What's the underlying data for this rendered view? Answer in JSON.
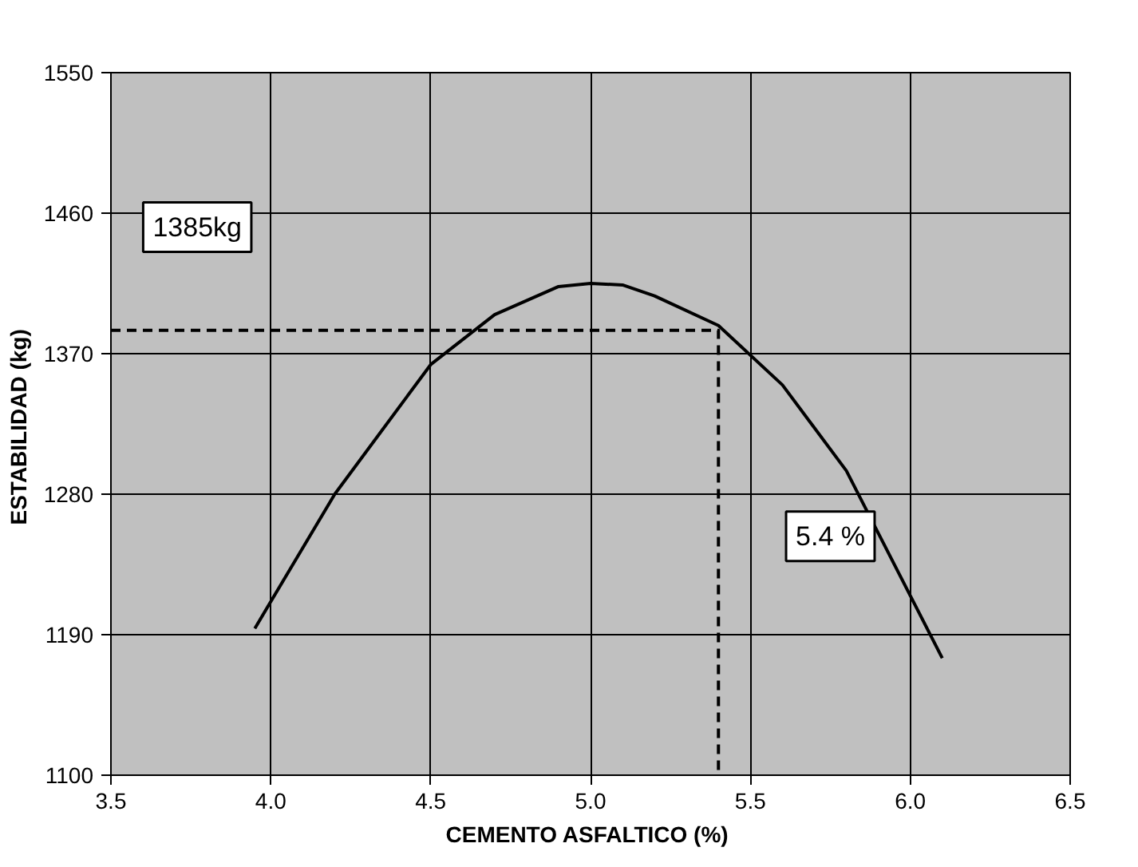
{
  "chart_data": {
    "type": "line",
    "xlabel": "CEMENTO ASFALTICO  (%)",
    "ylabel": "ESTABILIDAD  (kg)",
    "xlim": [
      3.5,
      6.5
    ],
    "ylim": [
      1100,
      1550
    ],
    "xticks": [
      {
        "value": 3.5,
        "label": "3.5"
      },
      {
        "value": 4.0,
        "label": "4.0"
      },
      {
        "value": 4.5,
        "label": "4.5"
      },
      {
        "value": 5.0,
        "label": "5.0"
      },
      {
        "value": 5.5,
        "label": "5.5"
      },
      {
        "value": 6.0,
        "label": "6.0"
      },
      {
        "value": 6.5,
        "label": "6.5"
      }
    ],
    "yticks": [
      1100,
      1190,
      1280,
      1370,
      1460,
      1550
    ],
    "grid": true,
    "marker": "none",
    "series": [
      {
        "color": "#000000",
        "line_style": "solid",
        "x": [
          3.95,
          4.2,
          4.5,
          4.7,
          4.9,
          5.0,
          5.1,
          5.2,
          5.4,
          5.6,
          5.8,
          6.0,
          6.1
        ],
        "values": [
          1194,
          1280,
          1363,
          1395,
          1413,
          1415,
          1414,
          1407,
          1388,
          1350,
          1295,
          1215,
          1175
        ]
      },
      {
        "color": "#000000",
        "line_style": "dashed",
        "x": [
          3.5,
          5.4,
          5.4
        ],
        "values": [
          1385,
          1385,
          1100
        ]
      }
    ],
    "annotations": [
      "1385kg",
      "5.4 %"
    ]
  }
}
